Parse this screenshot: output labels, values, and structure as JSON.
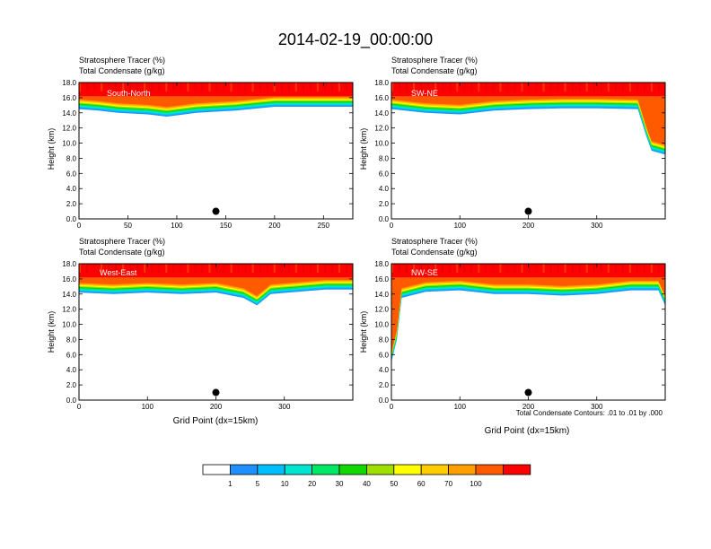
{
  "figure_title": "2014-02-19_00:00:00",
  "cross_sections": {
    "south_north": "South-North",
    "sw_ne": "SW-NE",
    "west_east": "West-East",
    "nw_se": "NW-SE"
  },
  "panel_header": {
    "line1": "Stratosphere Tracer   (%)",
    "line2": "Total Condensate   (g/kg)"
  },
  "axes": {
    "ylabel": "Height (km)",
    "xlabel": "Grid Point (dx=15km)"
  },
  "contour_note": "Total Condensate Contours: .01 to .01 by .000",
  "colorbar": {
    "levels": [
      "1",
      "5",
      "10",
      "20",
      "30",
      "40",
      "50",
      "60",
      "70",
      "100"
    ],
    "colors": [
      "#ffffff",
      "#1e90ff",
      "#00bfff",
      "#00e5d0",
      "#00e864",
      "#10d800",
      "#a0e000",
      "#ffff00",
      "#ffcc00",
      "#ffa000",
      "#ff5a00",
      "#ff0000"
    ]
  },
  "chart_data": [
    {
      "type": "heatmap",
      "name": "South-North",
      "title": "South-North",
      "xlim": [
        0,
        280
      ],
      "ylim": [
        0,
        18
      ],
      "xticks": [
        0,
        50,
        100,
        150,
        200,
        250
      ],
      "yticks": [
        0.0,
        2.0,
        4.0,
        6.0,
        8.0,
        10.0,
        12.0,
        14.0,
        16.0,
        18.0
      ],
      "tracer_top_km": [
        [
          0,
          14.5
        ],
        [
          20,
          14.3
        ],
        [
          40,
          14.0
        ],
        [
          70,
          13.8
        ],
        [
          90,
          13.5
        ],
        [
          120,
          14.0
        ],
        [
          160,
          14.3
        ],
        [
          200,
          14.8
        ],
        [
          240,
          14.8
        ],
        [
          280,
          14.8
        ]
      ],
      "marker_x": 140,
      "marker_y": 1.0
    },
    {
      "type": "heatmap",
      "name": "SW-NE",
      "title": "SW-NE",
      "xlim": [
        0,
        400
      ],
      "ylim": [
        0,
        18
      ],
      "xticks": [
        0,
        100,
        200,
        300
      ],
      "yticks": [
        0.0,
        2.0,
        4.0,
        6.0,
        8.0,
        10.0,
        12.0,
        14.0,
        16.0,
        18.0
      ],
      "tracer_top_km": [
        [
          0,
          14.5
        ],
        [
          50,
          14.0
        ],
        [
          100,
          13.8
        ],
        [
          150,
          14.3
        ],
        [
          200,
          14.5
        ],
        [
          250,
          14.6
        ],
        [
          300,
          14.6
        ],
        [
          360,
          14.5
        ],
        [
          372,
          11.0
        ],
        [
          380,
          9.0
        ],
        [
          400,
          8.5
        ]
      ],
      "marker_x": 200,
      "marker_y": 1.0
    },
    {
      "type": "heatmap",
      "name": "West-East",
      "title": "West-East",
      "xlim": [
        0,
        400
      ],
      "ylim": [
        0,
        18
      ],
      "xticks": [
        0,
        100,
        200,
        300
      ],
      "yticks": [
        0.0,
        2.0,
        4.0,
        6.0,
        8.0,
        10.0,
        12.0,
        14.0,
        16.0,
        18.0
      ],
      "tracer_top_km": [
        [
          0,
          14.2
        ],
        [
          50,
          14.0
        ],
        [
          100,
          14.2
        ],
        [
          150,
          14.0
        ],
        [
          200,
          14.2
        ],
        [
          240,
          13.5
        ],
        [
          260,
          12.5
        ],
        [
          280,
          14.0
        ],
        [
          320,
          14.3
        ],
        [
          360,
          14.6
        ],
        [
          400,
          14.6
        ]
      ],
      "marker_x": 200,
      "marker_y": 1.0
    },
    {
      "type": "heatmap",
      "name": "NW-SE",
      "title": "NW-SE",
      "xlim": [
        0,
        400
      ],
      "ylim": [
        0,
        18
      ],
      "xticks": [
        0,
        100,
        200,
        300
      ],
      "yticks": [
        0.0,
        2.0,
        4.0,
        6.0,
        8.0,
        10.0,
        12.0,
        14.0,
        16.0,
        18.0
      ],
      "tracer_top_km": [
        [
          0,
          5.0
        ],
        [
          8,
          8.0
        ],
        [
          15,
          13.5
        ],
        [
          50,
          14.3
        ],
        [
          100,
          14.5
        ],
        [
          150,
          14.0
        ],
        [
          200,
          14.0
        ],
        [
          250,
          13.8
        ],
        [
          300,
          14.0
        ],
        [
          350,
          14.5
        ],
        [
          390,
          14.5
        ],
        [
          400,
          12.5
        ]
      ],
      "marker_x": 200,
      "marker_y": 1.0
    }
  ]
}
